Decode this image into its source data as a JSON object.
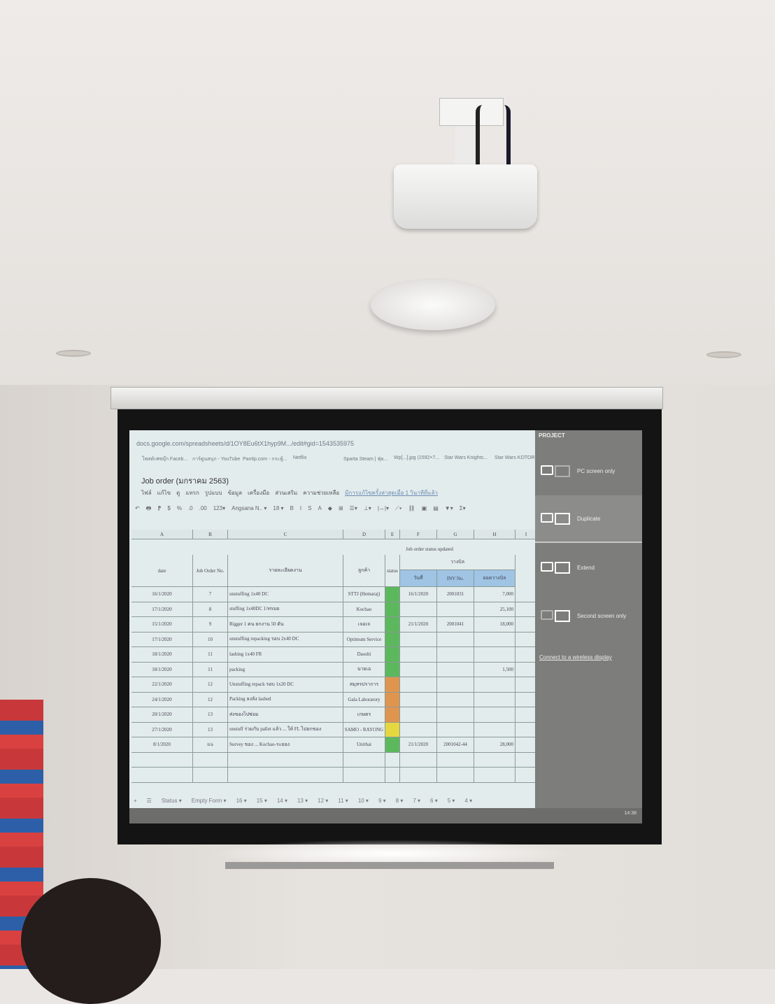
{
  "browser": {
    "url": "docs.google.com/spreadsheets/d/1OY8Eu6tX1hyp9M.../edit#gid=1543535975",
    "bookmarks": [
      "โพสต์เฟซบุ๊ก Faceb...",
      "การ์ตูนสนุก - YouTube",
      "Pantip.com - กระทู้...",
      "Netflix",
      "Sparta Steam | ฟุ่ย...",
      "Wp[...].jpg (1592×7...",
      "Star Wars Knights...",
      "Star Wars KOTOR"
    ]
  },
  "sheet": {
    "title": "Job order  (มกราคม 2563)",
    "menu": [
      "ไฟล์",
      "แก้ไข",
      "ดู",
      "แทรก",
      "รูปแบบ",
      "ข้อมูล",
      "เครื่องมือ",
      "ส่วนเสริม",
      "ความช่วยเหลือ",
      "มีการแก้ไขครั้งล่าสุดเมื่อ 1 วินาทีที่แล้ว"
    ],
    "toolbar": [
      "↶",
      "🖶",
      "⁋",
      "$",
      "%",
      ".0",
      ".00",
      "123▾",
      "Angsana N.. ▾",
      "18 ▾",
      "B",
      "I",
      "S",
      "A",
      "◆",
      "⊞",
      "☰▾",
      "⊥▾",
      "|↔|▾",
      "⟋▾",
      "⛓",
      "▣",
      "▤",
      "▼▾",
      "Σ▾"
    ],
    "column_letters": [
      "A",
      "B",
      "C",
      "D",
      "E",
      "F",
      "G",
      "H",
      "I"
    ],
    "table_title": "Job order status updated",
    "headers": {
      "date": "date",
      "job": "Job Order No.",
      "desc": "รายละเอียดงาน",
      "customer": "ลูกค้า",
      "status": "status",
      "billing": "วางบิล",
      "bill_date": "วันที่",
      "inv": "INV No.",
      "amount": "ยอดวางบิล"
    },
    "rows": [
      {
        "date": "16/1/2020",
        "job": "7",
        "desc": "unstuffing 1x40 DC",
        "customer": "STTJ (Hemaraj)",
        "status": "#5cb85c",
        "bill_date": "16/1/2020",
        "inv": "2001031",
        "amount": "7,000"
      },
      {
        "date": "17/1/2020",
        "job": "8",
        "desc": "stuffing 1x40DC 1/ทรมย",
        "customer": "Kochao",
        "status": "#5cb85c",
        "bill_date": "",
        "inv": "",
        "amount": "25,100"
      },
      {
        "date": "15/1/2020",
        "job": "9",
        "desc": "Rigger 1 คน ยกงาน 50 ตัน",
        "customer": "เจอเจ",
        "status": "#5cb85c",
        "bill_date": "21/1/2020",
        "inv": "2001041",
        "amount": "18,000"
      },
      {
        "date": "17/1/2020",
        "job": "10",
        "desc": "unstuffing repacking รอบ 2x40 DC",
        "customer": "Optimum Service",
        "status": "#5cb85c",
        "bill_date": "",
        "inv": "",
        "amount": ""
      },
      {
        "date": "18/1/2020",
        "job": "11",
        "desc": "lashing 1x40 FR",
        "customer": "Daoshi",
        "status": "#5cb85c",
        "bill_date": "",
        "inv": "",
        "amount": ""
      },
      {
        "date": "18/1/2020",
        "job": "11",
        "desc": "packing",
        "customer": "นายเอ",
        "status": "#5cb85c",
        "bill_date": "",
        "inv": "",
        "amount": "1,500"
      },
      {
        "date": "22/1/2020",
        "job": "12",
        "desc": "Unstuffing repack รอบ 1x20 DC",
        "customer": "สมุทรปราการ",
        "status": "#e0954e",
        "bill_date": "",
        "inv": "",
        "amount": ""
      },
      {
        "date": "24/1/2020",
        "job": "12",
        "desc": "Packing ลงลัง lashed",
        "customer": "Gala Laboratory",
        "status": "#e0954e",
        "bill_date": "",
        "inv": "",
        "amount": ""
      },
      {
        "date": "20/1/2020",
        "job": "13",
        "desc": "ส่งของไปซ่อม",
        "customer": "เกษตร",
        "status": "#e0954e",
        "bill_date": "",
        "inv": "",
        "amount": ""
      },
      {
        "date": "27/1/2020",
        "job": "13",
        "desc": "unstuff ร่วมกับ pallet แล้ว ... ให้ FL ไปยกของ",
        "customer": "SAMO - RAYONG",
        "status": "#e5d740",
        "bill_date": "",
        "inv": "",
        "amount": ""
      },
      {
        "date": "8/1/2020",
        "job": "n/a",
        "desc": "Survey ของ ... Kochao-ระยอง",
        "customer": "Unithai",
        "status": "#5cb85c",
        "bill_date": "21/1/2020",
        "inv": "2001042-44",
        "amount": "28,000"
      }
    ],
    "tabs": [
      "+",
      "☰",
      "Status ▾",
      "Empty Form ▾",
      "16 ▾",
      "15 ▾",
      "14 ▾",
      "13 ▾",
      "12 ▾",
      "11 ▾",
      "10 ▾",
      "9 ▾",
      "8 ▾",
      "7 ▾",
      "6 ▾",
      "5 ▾",
      "4 ▾"
    ]
  },
  "project_panel": {
    "title": "PROJECT",
    "options": [
      {
        "label": "PC screen only"
      },
      {
        "label": "Duplicate",
        "selected": true
      },
      {
        "label": "Extend"
      },
      {
        "label": "Second screen only"
      }
    ],
    "link": "Connect to a wireless display"
  },
  "taskbar": {
    "time": "14:38"
  }
}
